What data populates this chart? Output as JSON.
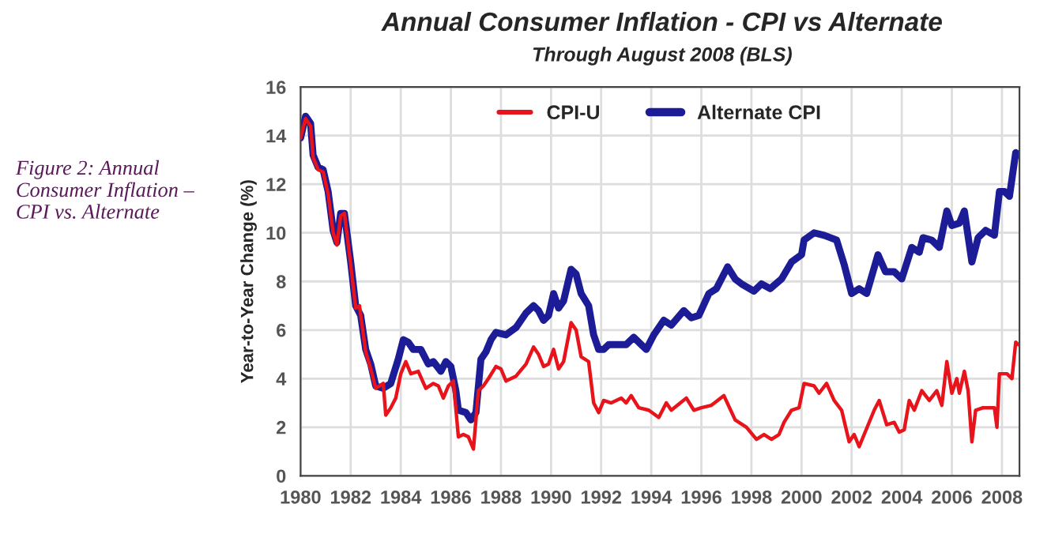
{
  "chart_data": {
    "type": "line",
    "title": "Annual Consumer Inflation - CPI vs Alternate",
    "subtitle": "Through August 2008 (BLS)",
    "ylabel": "Year-to-Year Change (%)",
    "annotations": [
      "Figure 2: Annual Consumer Inflation – CPI vs. Alternate"
    ],
    "xlim": [
      1980,
      2008.7
    ],
    "xticks": [
      1980,
      1982,
      1984,
      1986,
      1988,
      1990,
      1992,
      1994,
      1996,
      1998,
      2000,
      2002,
      2004,
      2006,
      2008
    ],
    "ylim": [
      0,
      16
    ],
    "yticks": [
      0,
      2,
      4,
      6,
      8,
      10,
      12,
      14,
      16
    ],
    "grid": true,
    "legend": "top",
    "series": [
      {
        "name": "CPI-U",
        "color": "#e8141c",
        "x": [
          1980.0,
          1980.2,
          1980.4,
          1980.5,
          1980.7,
          1980.9,
          1981.1,
          1981.3,
          1981.45,
          1981.6,
          1981.75,
          1982.0,
          1982.2,
          1982.35,
          1982.6,
          1982.8,
          1983.0,
          1983.3,
          1983.4,
          1983.6,
          1983.8,
          1984.0,
          1984.2,
          1984.4,
          1984.7,
          1985.0,
          1985.3,
          1985.5,
          1985.7,
          1985.9,
          1986.1,
          1986.3,
          1986.5,
          1986.7,
          1986.9,
          1987.1,
          1987.3,
          1987.5,
          1987.8,
          1988.0,
          1988.2,
          1988.6,
          1989.0,
          1989.3,
          1989.5,
          1989.7,
          1989.9,
          1990.1,
          1990.3,
          1990.5,
          1990.8,
          1991.0,
          1991.2,
          1991.5,
          1991.7,
          1991.9,
          1992.1,
          1992.4,
          1992.8,
          1993.0,
          1993.2,
          1993.5,
          1993.9,
          1994.3,
          1994.6,
          1994.8,
          1995.4,
          1995.7,
          1996.0,
          1996.4,
          1996.9,
          1997.35,
          1997.8,
          1998.2,
          1998.5,
          1998.8,
          1999.1,
          1999.3,
          1999.6,
          1999.9,
          2000.1,
          2000.5,
          2000.7,
          2001.0,
          2001.3,
          2001.6,
          2001.9,
          2002.1,
          2002.3,
          2002.5,
          2002.9,
          2003.1,
          2003.4,
          2003.7,
          2003.9,
          2004.1,
          2004.3,
          2004.5,
          2004.8,
          2005.1,
          2005.4,
          2005.6,
          2005.8,
          2006.0,
          2006.2,
          2006.3,
          2006.5,
          2006.65,
          2006.8,
          2006.95,
          2007.25,
          2007.7,
          2007.8,
          2007.9,
          2008.2,
          2008.4,
          2008.55,
          2008.65
        ],
        "values": [
          13.9,
          14.7,
          14.4,
          13.1,
          12.6,
          12.5,
          11.6,
          10.0,
          9.5,
          10.7,
          10.8,
          8.7,
          6.9,
          7.0,
          5.1,
          4.4,
          3.6,
          3.8,
          2.5,
          2.8,
          3.2,
          4.2,
          4.7,
          4.2,
          4.3,
          3.6,
          3.8,
          3.7,
          3.2,
          3.7,
          3.9,
          1.6,
          1.7,
          1.6,
          1.1,
          3.5,
          3.7,
          4.0,
          4.5,
          4.4,
          3.9,
          4.1,
          4.6,
          5.3,
          5.0,
          4.5,
          4.6,
          5.2,
          4.4,
          4.7,
          6.3,
          6.0,
          4.9,
          4.7,
          3.0,
          2.6,
          3.1,
          3.0,
          3.2,
          3.0,
          3.3,
          2.8,
          2.7,
          2.4,
          3.0,
          2.7,
          3.2,
          2.7,
          2.8,
          2.9,
          3.3,
          2.3,
          2.0,
          1.5,
          1.7,
          1.5,
          1.7,
          2.2,
          2.7,
          2.8,
          3.8,
          3.7,
          3.4,
          3.8,
          3.1,
          2.7,
          1.4,
          1.7,
          1.2,
          1.7,
          2.7,
          3.1,
          2.1,
          2.2,
          1.8,
          1.9,
          3.1,
          2.7,
          3.5,
          3.1,
          3.5,
          2.9,
          4.7,
          3.4,
          4.0,
          3.4,
          4.3,
          3.5,
          1.4,
          2.7,
          2.8,
          2.8,
          2.0,
          4.2,
          4.2,
          4.0,
          5.5,
          5.4
        ]
      },
      {
        "name": "Alternate CPI",
        "color": "#1c1c96",
        "x": [
          1980.0,
          1980.2,
          1980.4,
          1980.5,
          1980.7,
          1980.9,
          1981.1,
          1981.3,
          1981.45,
          1981.6,
          1981.75,
          1982.0,
          1982.2,
          1982.4,
          1982.6,
          1982.8,
          1983.0,
          1983.3,
          1983.6,
          1983.9,
          1984.1,
          1984.3,
          1984.5,
          1984.8,
          1985.1,
          1985.3,
          1985.6,
          1985.8,
          1986.0,
          1986.2,
          1986.3,
          1986.6,
          1986.8,
          1987.0,
          1987.2,
          1987.4,
          1987.6,
          1987.8,
          1988.2,
          1988.6,
          1989.0,
          1989.3,
          1989.5,
          1989.7,
          1989.9,
          1990.1,
          1990.3,
          1990.5,
          1990.8,
          1991.0,
          1991.2,
          1991.5,
          1991.7,
          1991.9,
          1992.1,
          1992.3,
          1992.8,
          1993.0,
          1993.3,
          1993.6,
          1993.8,
          1994.1,
          1994.5,
          1994.8,
          1995.3,
          1995.6,
          1995.9,
          1996.3,
          1996.6,
          1997.05,
          1997.35,
          1997.6,
          1998.1,
          1998.4,
          1998.75,
          1999.2,
          1999.6,
          2000.0,
          2000.1,
          2000.5,
          2000.9,
          2001.4,
          2001.7,
          2002.0,
          2002.3,
          2002.6,
          2003.05,
          2003.35,
          2003.7,
          2004.0,
          2004.4,
          2004.7,
          2004.85,
          2005.2,
          2005.5,
          2005.8,
          2006.0,
          2006.3,
          2006.5,
          2006.8,
          2007.05,
          2007.35,
          2007.7,
          2007.9,
          2008.1,
          2008.3,
          2008.55,
          2008.65
        ],
        "values": [
          13.9,
          14.8,
          14.5,
          13.2,
          12.7,
          12.6,
          11.7,
          10.1,
          9.6,
          10.8,
          10.8,
          8.8,
          7.0,
          6.6,
          5.2,
          4.6,
          3.7,
          3.6,
          3.8,
          4.8,
          5.6,
          5.5,
          5.2,
          5.2,
          4.6,
          4.7,
          4.3,
          4.7,
          4.5,
          3.5,
          2.7,
          2.6,
          2.3,
          2.6,
          4.8,
          5.1,
          5.6,
          5.9,
          5.8,
          6.1,
          6.7,
          7.0,
          6.8,
          6.4,
          6.6,
          7.5,
          6.9,
          7.2,
          8.5,
          8.3,
          7.5,
          7.0,
          5.8,
          5.2,
          5.2,
          5.4,
          5.4,
          5.4,
          5.7,
          5.4,
          5.2,
          5.8,
          6.4,
          6.2,
          6.8,
          6.5,
          6.6,
          7.5,
          7.7,
          8.6,
          8.1,
          7.9,
          7.6,
          7.9,
          7.7,
          8.1,
          8.8,
          9.1,
          9.7,
          10.0,
          9.9,
          9.7,
          8.7,
          7.5,
          7.7,
          7.5,
          9.1,
          8.4,
          8.4,
          8.1,
          9.4,
          9.2,
          9.8,
          9.7,
          9.4,
          10.9,
          10.3,
          10.4,
          10.9,
          8.8,
          9.8,
          10.1,
          9.9,
          11.7,
          11.7,
          11.5,
          13.3,
          13.2
        ]
      }
    ]
  }
}
